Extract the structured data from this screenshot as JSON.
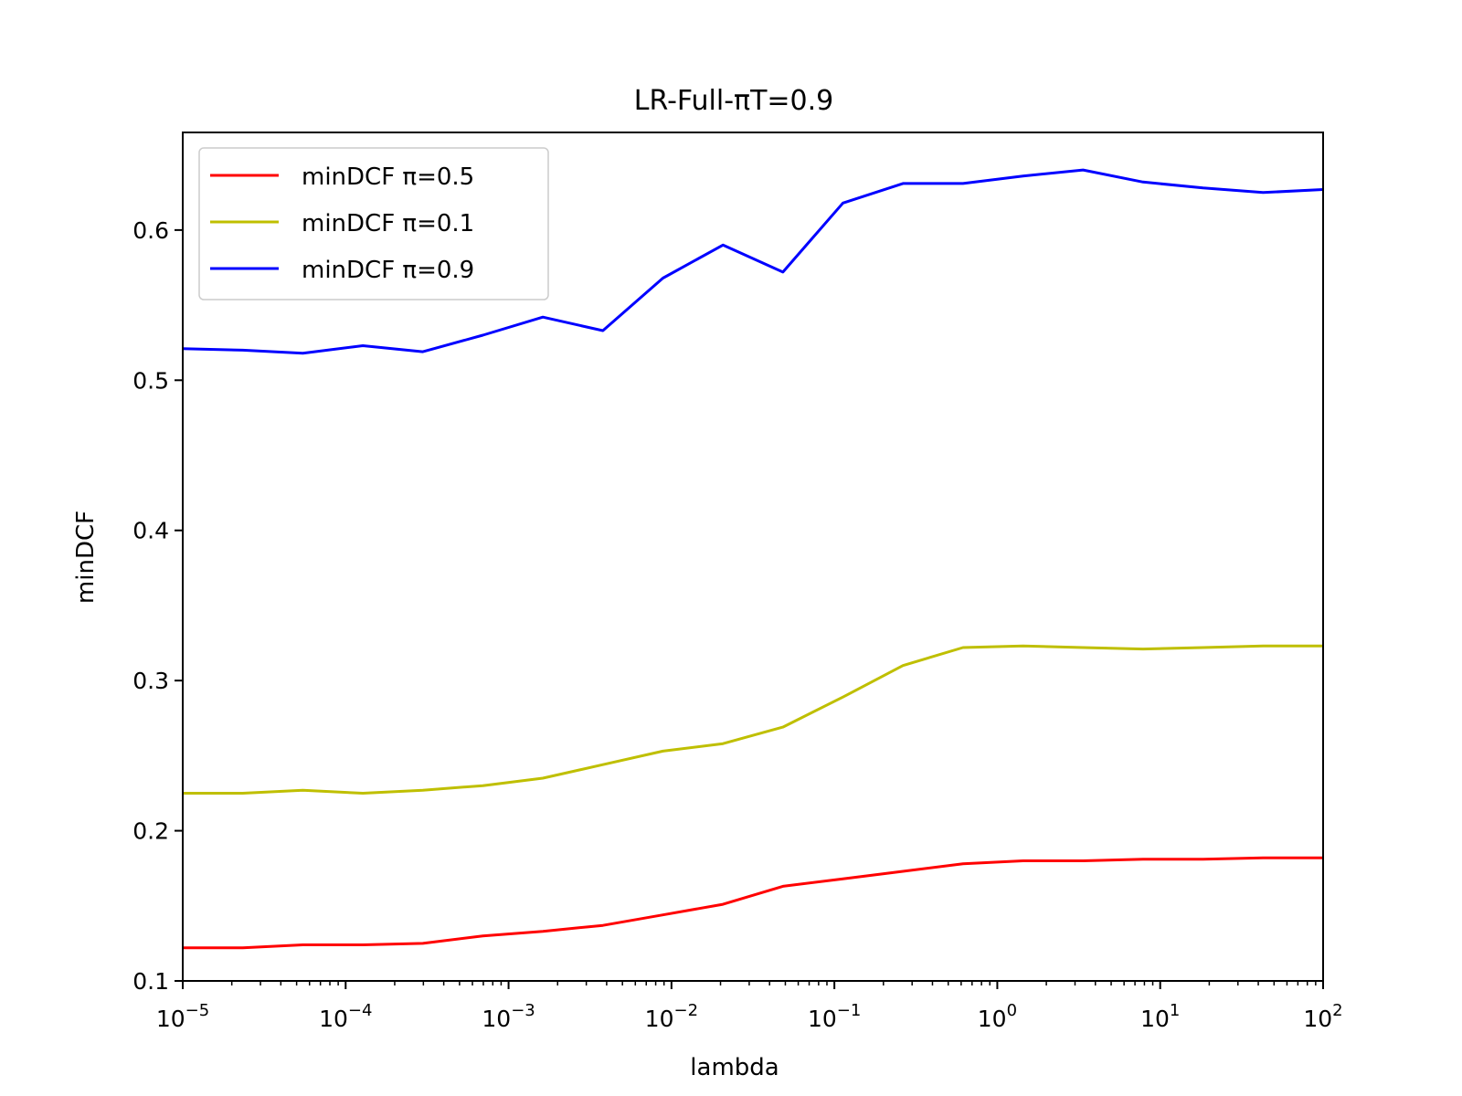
{
  "chart_data": {
    "type": "line",
    "title": "LR-Full-πT=0.9",
    "xlabel": "lambda",
    "ylabel": "minDCF",
    "x_scale": "log",
    "xlim": [
      1e-05,
      100
    ],
    "ylim": [
      0.1,
      0.665
    ],
    "grid": false,
    "legend_position": "upper-left",
    "x_tick_labels": [
      {
        "base": "10",
        "exp": "−5"
      },
      {
        "base": "10",
        "exp": "−4"
      },
      {
        "base": "10",
        "exp": "−3"
      },
      {
        "base": "10",
        "exp": "−2"
      },
      {
        "base": "10",
        "exp": "−1"
      },
      {
        "base": "10",
        "exp": "0"
      },
      {
        "base": "10",
        "exp": "1"
      },
      {
        "base": "10",
        "exp": "2"
      }
    ],
    "y_ticks": [
      "0.1",
      "0.2",
      "0.3",
      "0.4",
      "0.5",
      "0.6"
    ],
    "x": [
      1e-05,
      2.3357e-05,
      5.4556e-05,
      0.00012743,
      0.00029764,
      0.00069519,
      0.0016238,
      0.0037927,
      0.0088587,
      0.020691,
      0.048329,
      0.11288,
      0.26367,
      0.61585,
      1.4384,
      3.3598,
      7.8476,
      18.33,
      42.813,
      100
    ],
    "series": [
      {
        "name": "minDCF π=0.5",
        "color": "#ff0000",
        "values": [
          0.122,
          0.122,
          0.124,
          0.124,
          0.125,
          0.13,
          0.133,
          0.137,
          0.144,
          0.151,
          0.163,
          0.168,
          0.173,
          0.178,
          0.18,
          0.18,
          0.181,
          0.181,
          0.182,
          0.182
        ]
      },
      {
        "name": "minDCF π=0.1",
        "color": "#bfbf00",
        "values": [
          0.225,
          0.225,
          0.227,
          0.225,
          0.227,
          0.23,
          0.235,
          0.244,
          0.253,
          0.258,
          0.269,
          0.289,
          0.31,
          0.322,
          0.323,
          0.322,
          0.321,
          0.322,
          0.323,
          0.323
        ]
      },
      {
        "name": "minDCF π=0.9",
        "color": "#0000ff",
        "values": [
          0.521,
          0.52,
          0.518,
          0.523,
          0.519,
          0.53,
          0.542,
          0.533,
          0.568,
          0.59,
          0.572,
          0.618,
          0.631,
          0.631,
          0.636,
          0.64,
          0.632,
          0.628,
          0.625,
          0.627
        ]
      }
    ]
  }
}
